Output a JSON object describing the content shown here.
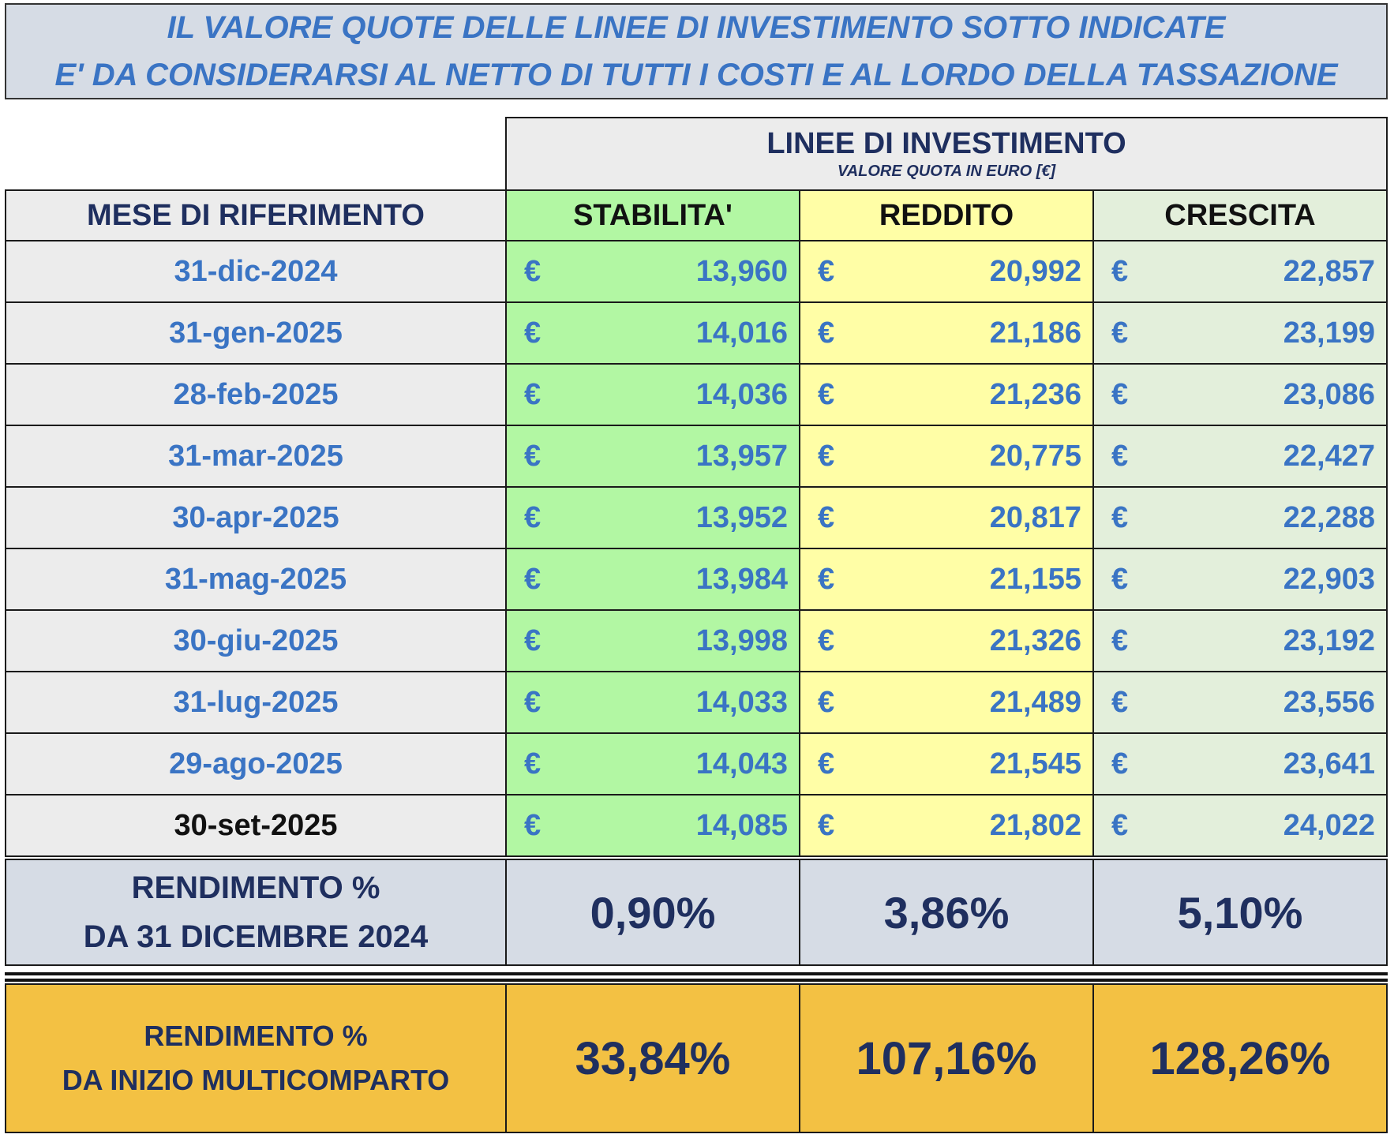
{
  "banner": {
    "line1": "IL VALORE QUOTE DELLE LINEE DI INVESTIMENTO SOTTO INDICATE",
    "line2": "E' DA CONSIDERARSI AL NETTO DI TUTTI I COSTI E AL LORDO DELLA TASSAZIONE"
  },
  "table": {
    "group_title": "LINEE DI INVESTIMENTO",
    "group_subtitle": "VALORE QUOTA IN EURO [€]",
    "headers": {
      "month": "MESE DI RIFERIMENTO",
      "stabilita": "STABILITA'",
      "reddito": "REDDITO",
      "crescita": "CRESCITA"
    },
    "currency_symbol": "€",
    "rows": [
      {
        "month": "31-dic-2024",
        "stabilita": "13,960",
        "reddito": "20,992",
        "crescita": "22,857"
      },
      {
        "month": "31-gen-2025",
        "stabilita": "14,016",
        "reddito": "21,186",
        "crescita": "23,199"
      },
      {
        "month": "28-feb-2025",
        "stabilita": "14,036",
        "reddito": "21,236",
        "crescita": "23,086"
      },
      {
        "month": "31-mar-2025",
        "stabilita": "13,957",
        "reddito": "20,775",
        "crescita": "22,427"
      },
      {
        "month": "30-apr-2025",
        "stabilita": "13,952",
        "reddito": "20,817",
        "crescita": "22,288"
      },
      {
        "month": "31-mag-2025",
        "stabilita": "13,984",
        "reddito": "21,155",
        "crescita": "22,903"
      },
      {
        "month": "30-giu-2025",
        "stabilita": "13,998",
        "reddito": "21,326",
        "crescita": "23,192"
      },
      {
        "month": "31-lug-2025",
        "stabilita": "14,033",
        "reddito": "21,489",
        "crescita": "23,556"
      },
      {
        "month": "29-ago-2025",
        "stabilita": "14,043",
        "reddito": "21,545",
        "crescita": "23,641"
      },
      {
        "month": "30-set-2025",
        "stabilita": "14,085",
        "reddito": "21,802",
        "crescita": "24,022"
      }
    ],
    "ytd": {
      "label_line1": "RENDIMENTO %",
      "label_line2": "DA 31 DICEMBRE 2024",
      "stabilita": "0,90%",
      "reddito": "3,86%",
      "crescita": "5,10%"
    },
    "inception": {
      "label_line1": "RENDIMENTO %",
      "label_line2": "DA INIZIO MULTICOMPARTO",
      "stabilita": "33,84%",
      "reddito": "107,16%",
      "crescita": "128,26%"
    }
  },
  "colors": {
    "stabilita_bg": "#b2f7a3",
    "reddito_bg": "#fffea6",
    "crescita_bg": "#e3efdb",
    "banner_bg": "#d6dce5",
    "inception_bg": "#f3c143",
    "value_text": "#3a74c4",
    "header_text": "#1f2f5f"
  }
}
